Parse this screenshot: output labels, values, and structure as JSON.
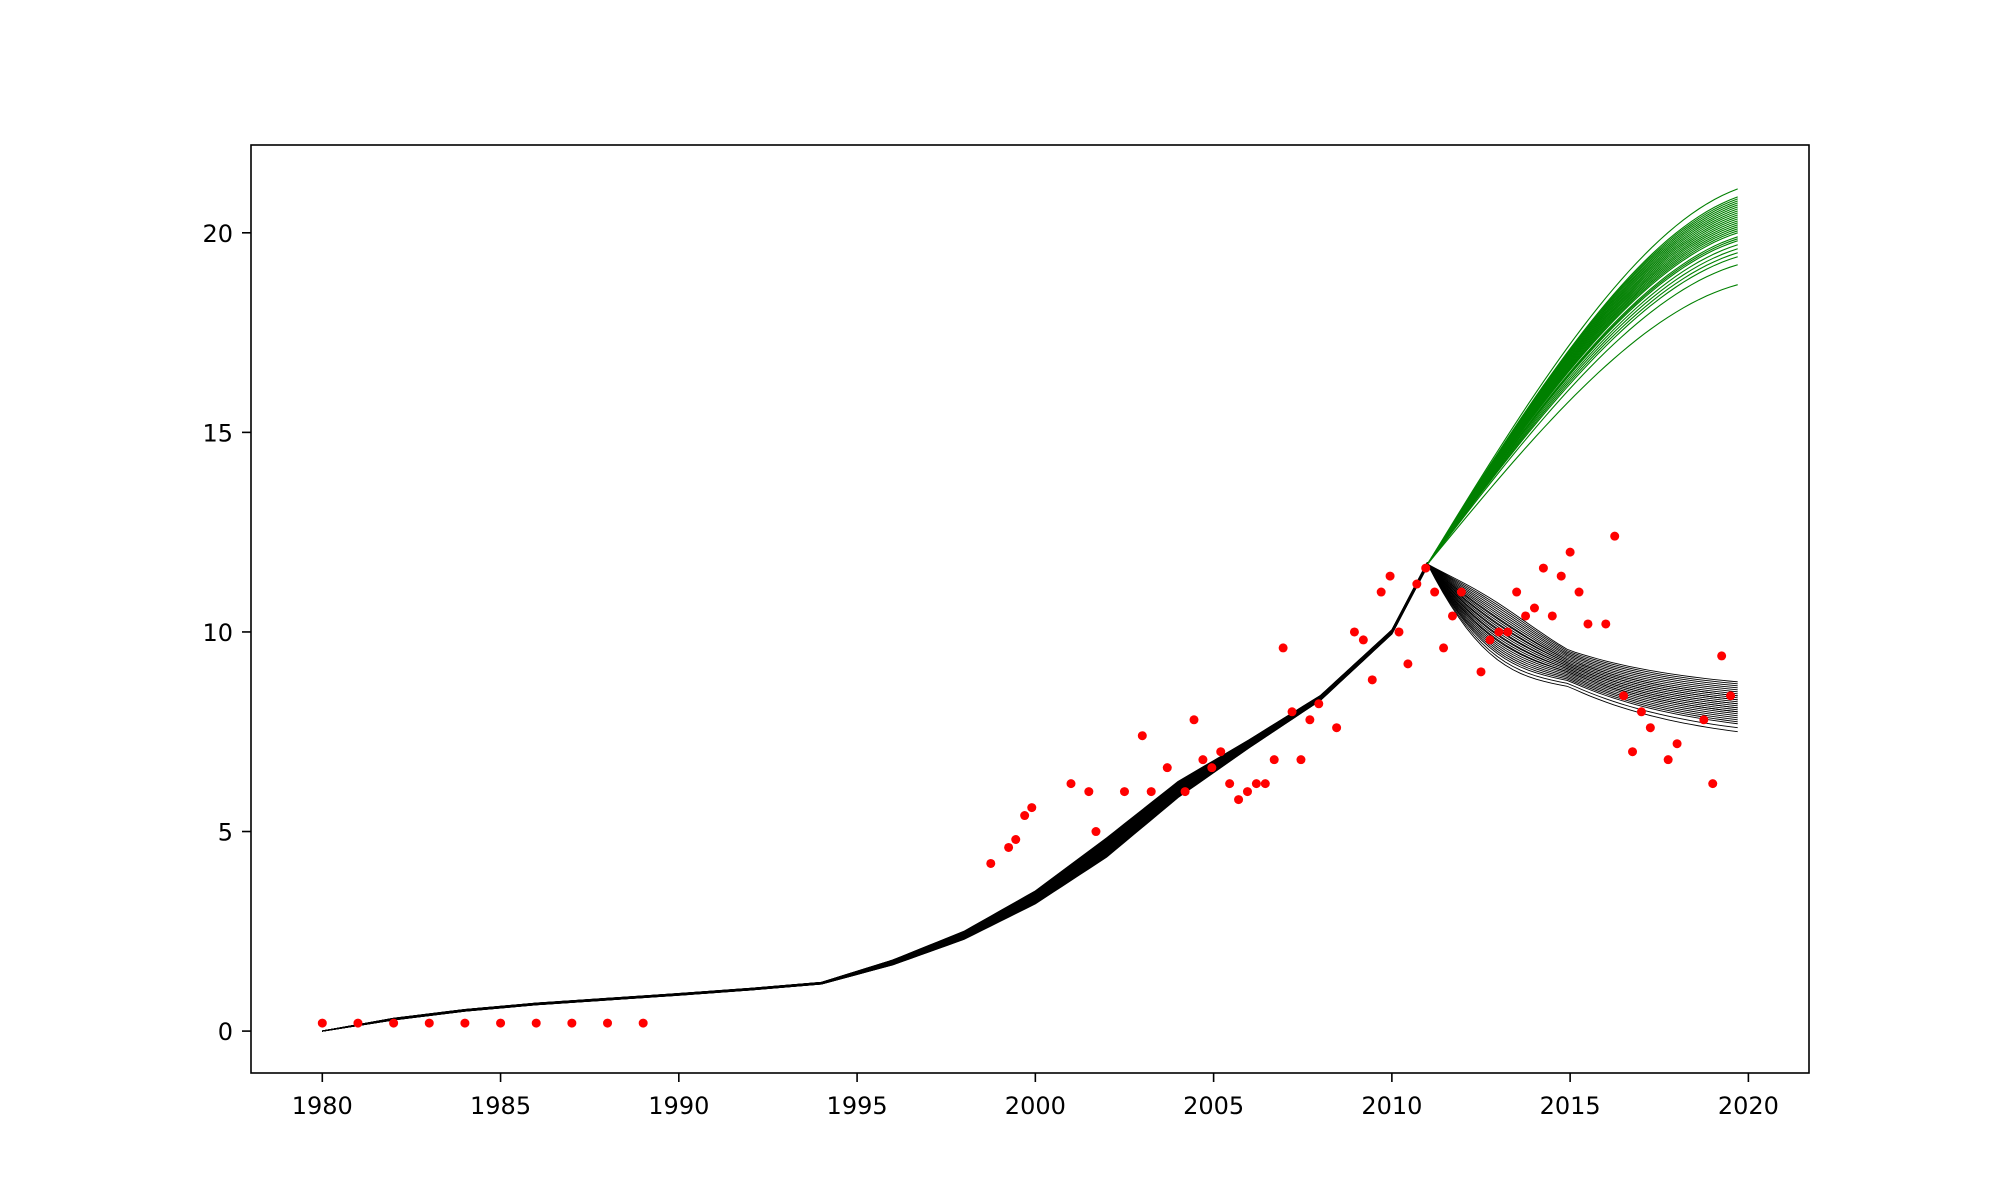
{
  "chart_data": {
    "type": "line",
    "title": "",
    "xlabel": "",
    "ylabel": "",
    "xlim": [
      1978,
      2021.7
    ],
    "ylim": [
      -1.05,
      22.2
    ],
    "grid": false,
    "legend": "none",
    "x_ticks": [
      1980,
      1985,
      1990,
      1995,
      2000,
      2005,
      2010,
      2015,
      2020
    ],
    "y_ticks": [
      0,
      5,
      10,
      15,
      20
    ],
    "x_tick_labels": [
      "1980",
      "1985",
      "1990",
      "1995",
      "2000",
      "2005",
      "2010",
      "2015",
      "2020"
    ],
    "y_tick_labels": [
      "0",
      "5",
      "10",
      "15",
      "20"
    ],
    "colors": {
      "history": "#000000",
      "scenario_high": "#008000",
      "scenario_low": "#000000",
      "observed": "#ff0000"
    },
    "history_band": {
      "x": [
        1980,
        1982,
        1984,
        1986,
        1988,
        1990,
        1992,
        1994,
        1996,
        1998,
        2000,
        2002,
        2004,
        2006,
        2008,
        2010,
        2011
      ],
      "y": [
        0,
        0.3,
        0.52,
        0.68,
        0.8,
        0.92,
        1.05,
        1.2,
        1.72,
        2.4,
        3.35,
        4.6,
        6.05,
        7.2,
        8.35,
        10.0,
        11.7
      ],
      "spread": [
        0,
        0.02,
        0.02,
        0.02,
        0.02,
        0.02,
        0.02,
        0.02,
        0.06,
        0.1,
        0.16,
        0.24,
        0.2,
        0.1,
        0.06,
        0.05,
        0.05
      ],
      "count": 40
    },
    "projection_high": {
      "x_start": 2011,
      "y_start": 11.7,
      "x_end": 2019.7,
      "end_values": [
        18.7,
        19.2,
        19.4,
        19.5,
        19.6,
        19.7,
        19.8,
        19.85,
        19.9,
        20.0,
        20.05,
        20.1,
        20.15,
        20.2,
        20.25,
        20.3,
        20.35,
        20.4,
        20.45,
        20.5,
        20.55,
        20.6,
        20.65,
        20.7,
        20.75,
        20.8,
        20.85,
        20.9,
        21.1
      ]
    },
    "projection_low": {
      "x_start": 2011,
      "y_start": 11.7,
      "x_end": 2019.7,
      "start_spread": [
        -0.6,
        0.5
      ],
      "end_values": [
        7.5,
        7.6,
        7.7,
        7.75,
        7.8,
        7.85,
        7.9,
        7.95,
        8.0,
        8.0,
        8.05,
        8.1,
        8.1,
        8.15,
        8.2,
        8.2,
        8.25,
        8.3,
        8.3,
        8.35,
        8.4,
        8.4,
        8.45,
        8.5,
        8.55,
        8.6,
        8.65,
        8.7,
        8.75
      ]
    },
    "observed_points": [
      [
        1980,
        0.2
      ],
      [
        1981,
        0.2
      ],
      [
        1982,
        0.2
      ],
      [
        1983,
        0.2
      ],
      [
        1984,
        0.2
      ],
      [
        1985,
        0.2
      ],
      [
        1986,
        0.2
      ],
      [
        1987,
        0.2
      ],
      [
        1988,
        0.2
      ],
      [
        1989,
        0.2
      ],
      [
        1998.75,
        4.2
      ],
      [
        1999.25,
        4.6
      ],
      [
        1999.45,
        4.8
      ],
      [
        1999.7,
        5.4
      ],
      [
        1999.9,
        5.6
      ],
      [
        2001.0,
        6.2
      ],
      [
        2001.5,
        6.0
      ],
      [
        2001.7,
        5.0
      ],
      [
        2002.5,
        6.0
      ],
      [
        2003.0,
        7.4
      ],
      [
        2003.25,
        6.0
      ],
      [
        2003.7,
        6.6
      ],
      [
        2004.2,
        6.0
      ],
      [
        2004.45,
        7.8
      ],
      [
        2004.7,
        6.8
      ],
      [
        2004.95,
        6.6
      ],
      [
        2005.2,
        7.0
      ],
      [
        2005.45,
        6.2
      ],
      [
        2005.7,
        5.8
      ],
      [
        2005.95,
        6.0
      ],
      [
        2006.2,
        6.2
      ],
      [
        2006.45,
        6.2
      ],
      [
        2006.7,
        6.8
      ],
      [
        2006.95,
        9.6
      ],
      [
        2007.2,
        8.0
      ],
      [
        2007.45,
        6.8
      ],
      [
        2007.7,
        7.8
      ],
      [
        2007.95,
        8.2
      ],
      [
        2008.45,
        7.6
      ],
      [
        2008.95,
        10.0
      ],
      [
        2009.2,
        9.8
      ],
      [
        2009.45,
        8.8
      ],
      [
        2009.7,
        11.0
      ],
      [
        2009.95,
        11.4
      ],
      [
        2010.2,
        10.0
      ],
      [
        2010.45,
        9.2
      ],
      [
        2010.7,
        11.2
      ],
      [
        2010.95,
        11.6
      ],
      [
        2011.2,
        11.0
      ],
      [
        2011.45,
        9.6
      ],
      [
        2011.7,
        10.4
      ],
      [
        2011.95,
        11.0
      ],
      [
        2012.5,
        9.0
      ],
      [
        2012.75,
        9.8
      ],
      [
        2013.0,
        10.0
      ],
      [
        2013.25,
        10.0
      ],
      [
        2013.5,
        11.0
      ],
      [
        2013.75,
        10.4
      ],
      [
        2014.0,
        10.6
      ],
      [
        2014.25,
        11.6
      ],
      [
        2014.5,
        10.4
      ],
      [
        2014.75,
        11.4
      ],
      [
        2015.0,
        12.0
      ],
      [
        2015.25,
        11.0
      ],
      [
        2015.5,
        10.2
      ],
      [
        2016.0,
        10.2
      ],
      [
        2016.25,
        12.4
      ],
      [
        2016.5,
        8.4
      ],
      [
        2016.75,
        7.0
      ],
      [
        2017.0,
        8.0
      ],
      [
        2017.25,
        7.6
      ],
      [
        2017.75,
        6.8
      ],
      [
        2018.0,
        7.2
      ],
      [
        2018.75,
        7.8
      ],
      [
        2019.0,
        6.2
      ],
      [
        2019.25,
        9.4
      ],
      [
        2019.5,
        8.4
      ]
    ]
  }
}
